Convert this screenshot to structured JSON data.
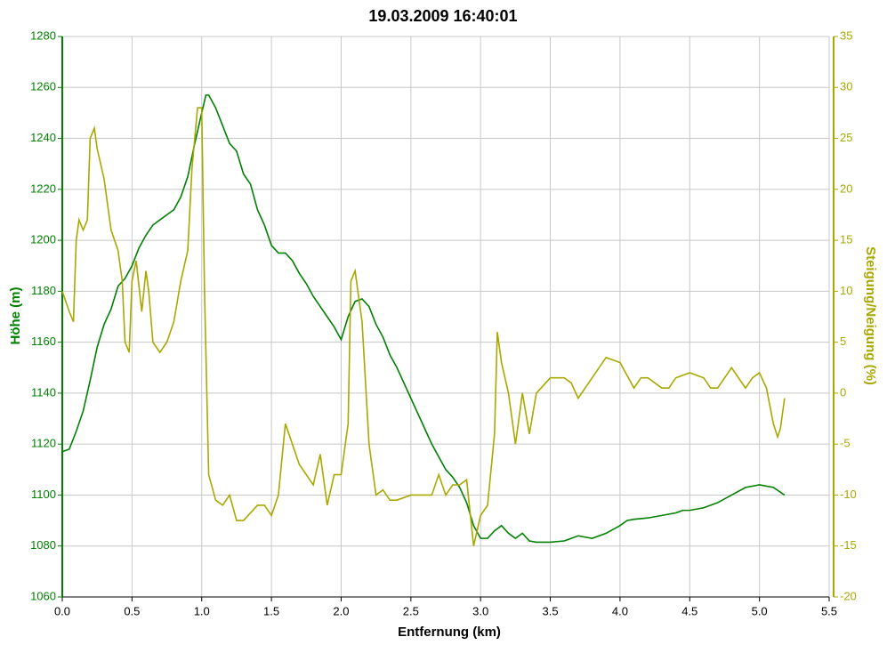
{
  "chart_data": {
    "type": "line",
    "title": "19.03.2009 16:40:01",
    "x_label": "Entfernung (km)",
    "y_label": "Höhe (m)",
    "y2_label": "Steigung/Neigung (%)",
    "xlim": [
      0,
      5.5
    ],
    "xticks": [
      {
        "value": 0,
        "label": "0.0"
      },
      0.5,
      {
        "value": 1,
        "label": "1.0"
      },
      1.5,
      {
        "value": 2,
        "label": "2.0"
      },
      2.5,
      {
        "value": 3,
        "label": "3.0"
      },
      3.5,
      {
        "value": 4,
        "label": "4.0"
      },
      4.5,
      {
        "value": 5,
        "label": "5.0"
      },
      5.5
    ],
    "ylim": [
      1060,
      1280
    ],
    "yticks": [
      1060,
      1080,
      1100,
      1120,
      1140,
      1160,
      1180,
      1200,
      1220,
      1240,
      1260,
      1280
    ],
    "y2lim": [
      -20,
      35
    ],
    "y2ticks": [
      -20,
      -15,
      -10,
      -5,
      0,
      5,
      10,
      15,
      20,
      25,
      30,
      35
    ],
    "grid": true,
    "y_color": "#008000",
    "y2_color": "#a8a800",
    "series": [
      {
        "color": "#008000",
        "x": [
          0,
          0.05,
          0.1,
          0.15,
          0.2,
          0.25,
          0.3,
          0.35,
          0.4,
          0.45,
          0.5,
          0.55,
          0.6,
          0.65,
          0.7,
          0.8,
          0.85,
          0.9,
          0.95,
          1.0,
          1.03,
          1.05,
          1.1,
          1.15,
          1.2,
          1.25,
          1.3,
          1.35,
          1.4,
          1.45,
          1.5,
          1.55,
          1.6,
          1.65,
          1.7,
          1.75,
          1.8,
          1.85,
          1.9,
          1.95,
          2.0,
          2.05,
          2.1,
          2.15,
          2.2,
          2.25,
          2.3,
          2.35,
          2.4,
          2.45,
          2.5,
          2.55,
          2.6,
          2.65,
          2.7,
          2.75,
          2.8,
          2.85,
          2.9,
          2.95,
          3.0,
          3.05,
          3.1,
          3.15,
          3.2,
          3.25,
          3.3,
          3.35,
          3.4,
          3.5,
          3.6,
          3.7,
          3.8,
          3.9,
          4.0,
          4.05,
          4.1,
          4.2,
          4.3,
          4.4,
          4.45,
          4.5,
          4.6,
          4.7,
          4.8,
          4.9,
          5.0,
          5.1,
          5.18
        ],
        "values": [
          1117,
          1118,
          1125,
          1133,
          1145,
          1158,
          1167,
          1173,
          1182,
          1185,
          1190,
          1197,
          1202,
          1206,
          1208,
          1212,
          1217,
          1225,
          1238,
          1250,
          1257,
          1257,
          1252,
          1245,
          1238,
          1235,
          1226,
          1222,
          1212,
          1206,
          1198,
          1195,
          1195,
          1192,
          1187,
          1183,
          1178,
          1174,
          1170,
          1166,
          1161,
          1170,
          1176,
          1177,
          1174,
          1167,
          1162,
          1155,
          1150,
          1144,
          1138,
          1132,
          1126,
          1120,
          1115,
          1110,
          1107,
          1103,
          1097,
          1088,
          1083,
          1083,
          1086,
          1088,
          1085,
          1083,
          1085,
          1082,
          1081.5,
          1081.5,
          1082,
          1084,
          1083,
          1085,
          1088,
          1090,
          1090.5,
          1091,
          1092,
          1093,
          1094,
          1094,
          1095,
          1097,
          1100,
          1103,
          1104,
          1103,
          1100
        ]
      },
      {
        "color": "#a8a800",
        "axis": "y2",
        "x": [
          0,
          0.05,
          0.08,
          0.1,
          0.12,
          0.15,
          0.18,
          0.2,
          0.23,
          0.25,
          0.3,
          0.35,
          0.4,
          0.43,
          0.45,
          0.48,
          0.5,
          0.53,
          0.57,
          0.6,
          0.62,
          0.65,
          0.7,
          0.75,
          0.8,
          0.85,
          0.9,
          0.93,
          0.97,
          1.0,
          1.02,
          1.05,
          1.1,
          1.15,
          1.2,
          1.25,
          1.3,
          1.4,
          1.45,
          1.5,
          1.55,
          1.6,
          1.65,
          1.7,
          1.75,
          1.8,
          1.85,
          1.9,
          1.95,
          2.0,
          2.05,
          2.07,
          2.1,
          2.15,
          2.2,
          2.25,
          2.3,
          2.35,
          2.4,
          2.5,
          2.6,
          2.65,
          2.7,
          2.75,
          2.8,
          2.85,
          2.9,
          2.95,
          3.0,
          3.05,
          3.1,
          3.12,
          3.15,
          3.2,
          3.25,
          3.3,
          3.35,
          3.4,
          3.5,
          3.6,
          3.65,
          3.7,
          3.8,
          3.9,
          4.0,
          4.1,
          4.15,
          4.2,
          4.3,
          4.35,
          4.4,
          4.5,
          4.6,
          4.65,
          4.7,
          4.8,
          4.9,
          4.95,
          5.0,
          5.05,
          5.1,
          5.13,
          5.15,
          5.18
        ],
        "values": [
          10,
          8,
          7,
          15,
          17,
          16,
          17,
          25,
          26,
          24,
          21,
          16,
          14,
          11,
          5,
          4,
          11,
          13,
          8,
          12,
          10,
          5,
          4,
          5,
          7,
          11,
          14,
          22,
          28,
          28,
          10,
          -8,
          -10.5,
          -11,
          -10,
          -12.5,
          -12.5,
          -11,
          -11,
          -12,
          -10,
          -3,
          -5,
          -7,
          -8,
          -9,
          -6,
          -11,
          -8,
          -8,
          -3,
          11,
          12,
          7,
          -5,
          -10,
          -9.5,
          -10.5,
          -10.5,
          -10,
          -10,
          -10,
          -8,
          -10,
          -9,
          -9,
          -8.5,
          -15,
          -12,
          -11,
          -4,
          6,
          3,
          0,
          -5,
          0,
          -4,
          0,
          1.5,
          1.5,
          1,
          -0.5,
          1.5,
          3.5,
          3,
          0.5,
          1.5,
          1.5,
          0.5,
          0.5,
          1.5,
          2,
          1.5,
          0.5,
          0.5,
          2.5,
          0.5,
          1.5,
          2,
          0.5,
          -3,
          -4.3,
          -3.5,
          -0.5
        ]
      }
    ]
  }
}
